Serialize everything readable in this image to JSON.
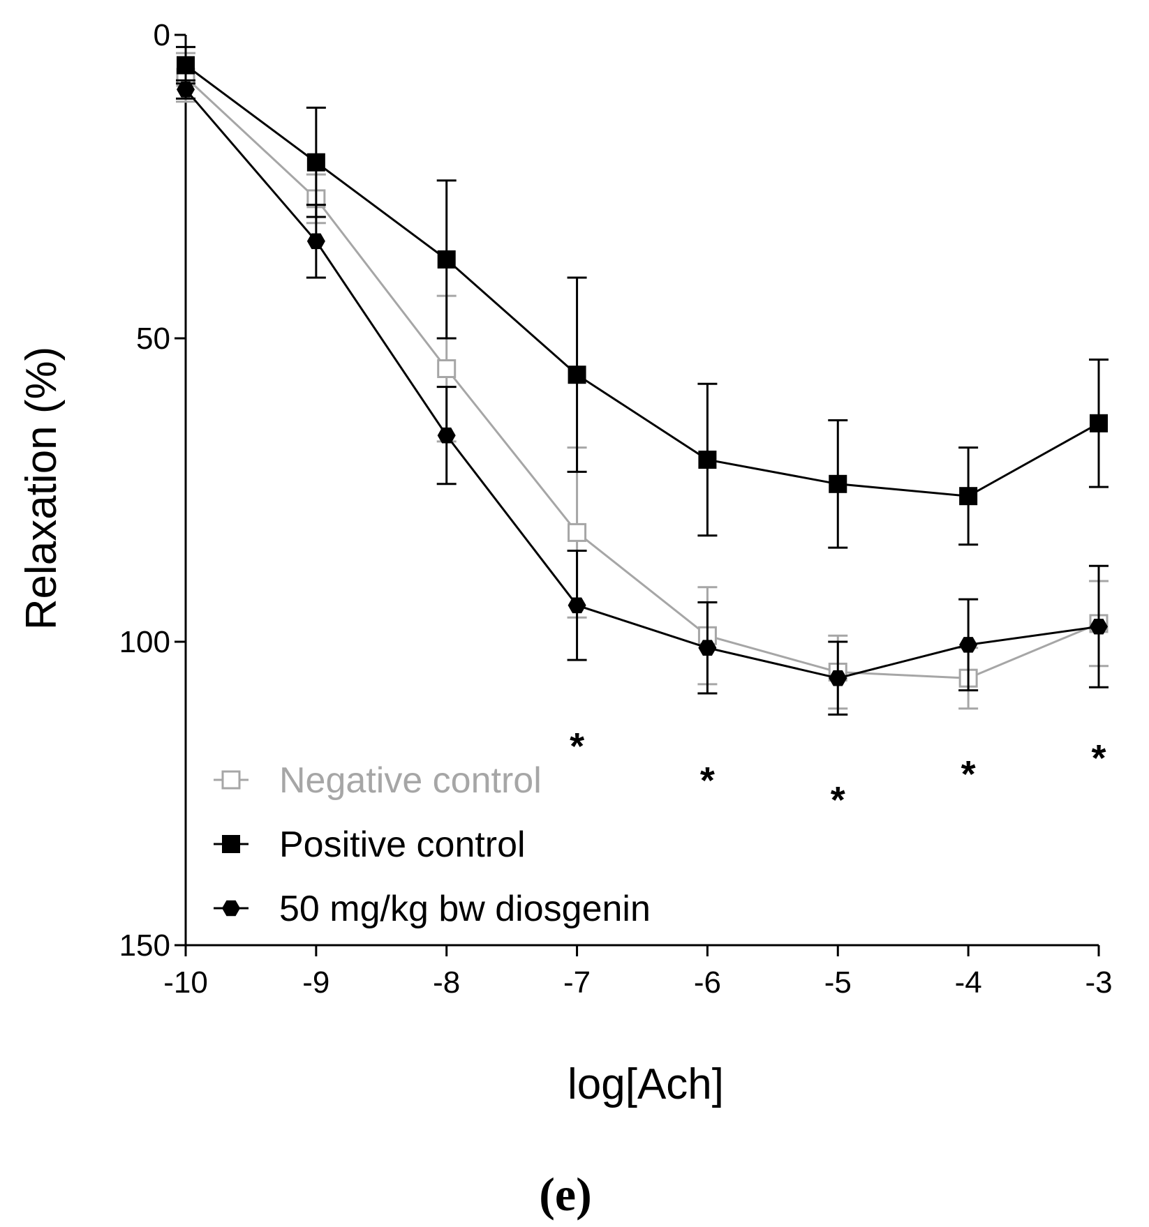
{
  "chart_data": {
    "type": "line",
    "title": "",
    "xlabel": "log[Ach]",
    "ylabel": "Relaxation (%)",
    "panel_label": "(e)",
    "x": [
      -10,
      -9,
      -8,
      -7,
      -6,
      -5,
      -4,
      -3
    ],
    "xlim": [
      -10,
      -3
    ],
    "ylim": [
      0,
      150
    ],
    "y_inverted": true,
    "yticks": [
      0,
      50,
      100,
      150
    ],
    "xtick_labels": [
      "-10",
      "-9",
      "-8",
      "-7",
      "-6",
      "-5",
      "-4",
      "-3"
    ],
    "ytick_labels": [
      "0",
      "50",
      "100",
      "150"
    ],
    "legend_position": "bottom-left",
    "series": [
      {
        "name": "Negative control",
        "marker": "open-square",
        "color": "#a6a6a6",
        "values": [
          7,
          27,
          55,
          82,
          99,
          105,
          106,
          97
        ],
        "errors": [
          4,
          4,
          12,
          14,
          8,
          6,
          5,
          7
        ]
      },
      {
        "name": "Positive control",
        "marker": "filled-square",
        "color": "#000000",
        "values": [
          5,
          21,
          37,
          56,
          70,
          74,
          76,
          64
        ],
        "errors": [
          3,
          9,
          13,
          16,
          12.5,
          10.5,
          8,
          10.5
        ]
      },
      {
        "name": "50 mg/kg bw diosgenin",
        "marker": "filled-hexagon",
        "color": "#000000",
        "values": [
          9,
          34,
          66,
          94,
          101,
          106,
          100.5,
          97.5
        ],
        "errors": [
          1.5,
          6,
          8,
          9,
          7.5,
          6,
          7.5,
          10
        ]
      }
    ],
    "significance": [
      {
        "x": -7,
        "label": "*"
      },
      {
        "x": -6,
        "label": "*"
      },
      {
        "x": -5,
        "label": "*"
      },
      {
        "x": -4,
        "label": "*"
      },
      {
        "x": -3,
        "label": "*"
      }
    ]
  }
}
